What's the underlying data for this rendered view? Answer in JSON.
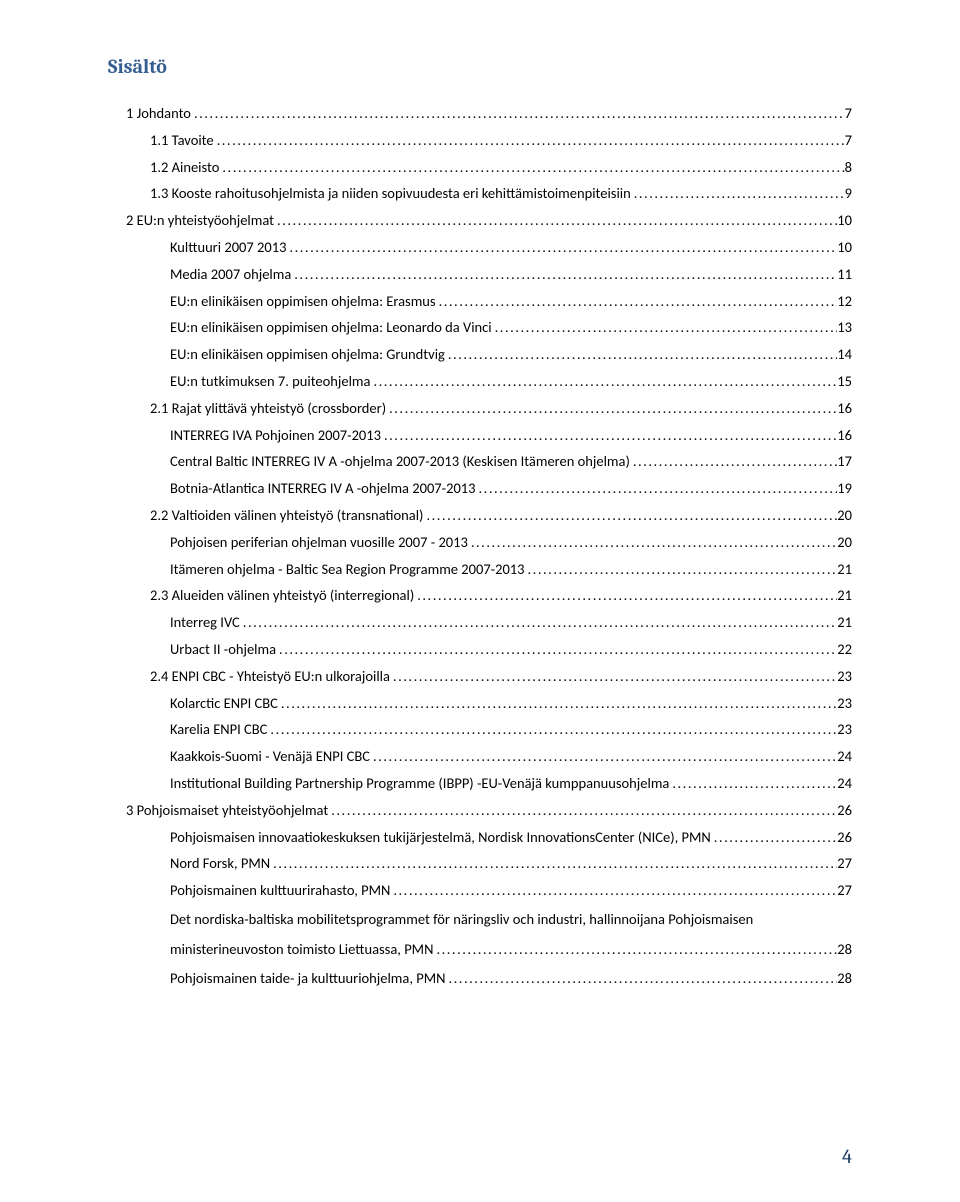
{
  "heading": "Sisältö",
  "page_number": "4",
  "colors": {
    "heading": "#365f91",
    "text": "#000000",
    "page_number": "#17365d",
    "background": "#ffffff"
  },
  "toc": [
    {
      "label": "1 Johdanto",
      "page": "7",
      "indent": 0
    },
    {
      "label": "1.1 Tavoite",
      "page": "7",
      "indent": 1
    },
    {
      "label": "1.2 Aineisto",
      "page": "8",
      "indent": 1
    },
    {
      "label": "1.3 Kooste rahoitusohjelmista ja niiden sopivuudesta eri kehittämistoimenpiteisiin",
      "page": "9",
      "indent": 1
    },
    {
      "label": "2 EU:n yhteistyöohjelmat",
      "page": "10",
      "indent": 0
    },
    {
      "label": "Kulttuuri 2007 2013",
      "page": "10",
      "indent": 2
    },
    {
      "label": "Media 2007 ohjelma",
      "page": "11",
      "indent": 2
    },
    {
      "label": "EU:n elinikäisen oppimisen ohjelma: Erasmus",
      "page": "12",
      "indent": 2
    },
    {
      "label": "EU:n elinikäisen oppimisen ohjelma: Leonardo da Vinci",
      "page": "13",
      "indent": 2
    },
    {
      "label": "EU:n elinikäisen oppimisen ohjelma: Grundtvig",
      "page": "14",
      "indent": 2
    },
    {
      "label": "EU:n tutkimuksen 7. puiteohjelma",
      "page": "15",
      "indent": 2
    },
    {
      "label": "2.1 Rajat ylittävä yhteistyö (crossborder)",
      "page": "16",
      "indent": 1
    },
    {
      "label": "INTERREG IVA Pohjoinen 2007-2013",
      "page": "16",
      "indent": 2
    },
    {
      "label": "Central Baltic INTERREG IV A -ohjelma 2007-2013 (Keskisen Itämeren ohjelma)",
      "page": "17",
      "indent": 2
    },
    {
      "label": "Botnia-Atlantica INTERREG IV A -ohjelma 2007-2013",
      "page": "19",
      "indent": 2
    },
    {
      "label": "2.2 Valtioiden välinen yhteistyö (transnational)",
      "page": "20",
      "indent": 1
    },
    {
      "label": "Pohjoisen periferian ohjelman vuosille 2007 - 2013",
      "page": "20",
      "indent": 2
    },
    {
      "label": "Itämeren ohjelma - Baltic Sea Region Programme 2007-2013",
      "page": "21",
      "indent": 2
    },
    {
      "label": "2.3 Alueiden välinen yhteistyö (interregional)",
      "page": "21",
      "indent": 1
    },
    {
      "label": "Interreg IVC",
      "page": "21",
      "indent": 2
    },
    {
      "label": "Urbact II -ohjelma",
      "page": "22",
      "indent": 2
    },
    {
      "label": "2.4 ENPI CBC - Yhteistyö EU:n ulkorajoilla",
      "page": "23",
      "indent": 1
    },
    {
      "label": "Kolarctic ENPI CBC",
      "page": "23",
      "indent": 2
    },
    {
      "label": "Karelia ENPI CBC",
      "page": "23",
      "indent": 2
    },
    {
      "label": "Kaakkois-Suomi - Venäjä ENPI CBC",
      "page": "24",
      "indent": 2
    },
    {
      "label": "Institutional Building Partnership Programme (IBPP) -EU-Venäjä kumppanuusohjelma",
      "page": "24",
      "indent": 2
    },
    {
      "label": "3 Pohjoismaiset yhteistyöohjelmat",
      "page": "26",
      "indent": 0
    },
    {
      "label": "Pohjoismaisen innovaatiokeskuksen tukijärjestelmä, Nordisk InnovationsCenter (NICe), PMN",
      "page": "26",
      "indent": 2
    },
    {
      "label": "Nord Forsk, PMN",
      "page": "27",
      "indent": 2
    },
    {
      "label": "Pohjoismainen kulttuurirahasto, PMN",
      "page": "27",
      "indent": 2
    },
    {
      "label_line1": "Det nordiska-baltiska mobilitetsprogrammet för näringsliv och industri, hallinnoijana Pohjoismaisen",
      "label_line2": "ministerineuvoston toimisto Liettuassa, PMN",
      "page": "28",
      "indent": 2,
      "wrap": true
    },
    {
      "label": "Pohjoismainen taide- ja kulttuuriohjelma, PMN",
      "page": "28",
      "indent": 2
    }
  ]
}
